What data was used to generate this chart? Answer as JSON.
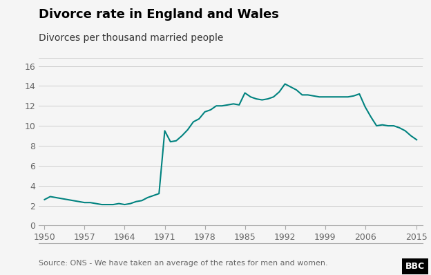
{
  "title": "Divorce rate in England and Wales",
  "subtitle": "Divorces per thousand married people",
  "source": "Source: ONS - We have taken an average of the rates for men and women.",
  "line_color": "#00827F",
  "background_color": "#f5f5f5",
  "grid_color": "#cccccc",
  "ylim": [
    0,
    16
  ],
  "yticks": [
    0,
    2,
    4,
    6,
    8,
    10,
    12,
    14,
    16
  ],
  "xticks": [
    1950,
    1957,
    1964,
    1971,
    1978,
    1985,
    1992,
    1999,
    2006,
    2015
  ],
  "xlim": [
    1949,
    2016
  ],
  "years": [
    1950,
    1951,
    1952,
    1953,
    1954,
    1955,
    1956,
    1957,
    1958,
    1959,
    1960,
    1961,
    1962,
    1963,
    1964,
    1965,
    1966,
    1967,
    1968,
    1969,
    1970,
    1971,
    1972,
    1973,
    1974,
    1975,
    1976,
    1977,
    1978,
    1979,
    1980,
    1981,
    1982,
    1983,
    1984,
    1985,
    1986,
    1987,
    1988,
    1989,
    1990,
    1991,
    1992,
    1993,
    1994,
    1995,
    1996,
    1997,
    1998,
    1999,
    2000,
    2001,
    2002,
    2003,
    2004,
    2005,
    2006,
    2007,
    2008,
    2009,
    2010,
    2011,
    2012,
    2013,
    2014,
    2015
  ],
  "values": [
    2.6,
    2.9,
    2.8,
    2.7,
    2.6,
    2.5,
    2.4,
    2.3,
    2.3,
    2.2,
    2.1,
    2.1,
    2.1,
    2.2,
    2.1,
    2.2,
    2.4,
    2.5,
    2.8,
    3.0,
    3.2,
    9.5,
    8.4,
    8.5,
    9.0,
    9.6,
    10.4,
    10.7,
    11.4,
    11.6,
    12.0,
    12.0,
    12.1,
    12.2,
    12.1,
    13.3,
    12.9,
    12.7,
    12.6,
    12.7,
    12.9,
    13.4,
    14.2,
    13.9,
    13.6,
    13.1,
    13.1,
    13.0,
    12.9,
    12.9,
    12.9,
    12.9,
    12.9,
    12.9,
    13.0,
    13.2,
    11.9,
    10.9,
    10.0,
    10.1,
    10.0,
    10.0,
    9.8,
    9.5,
    9.0,
    8.6
  ],
  "title_fontsize": 13,
  "subtitle_fontsize": 10,
  "tick_fontsize": 9,
  "source_fontsize": 8
}
